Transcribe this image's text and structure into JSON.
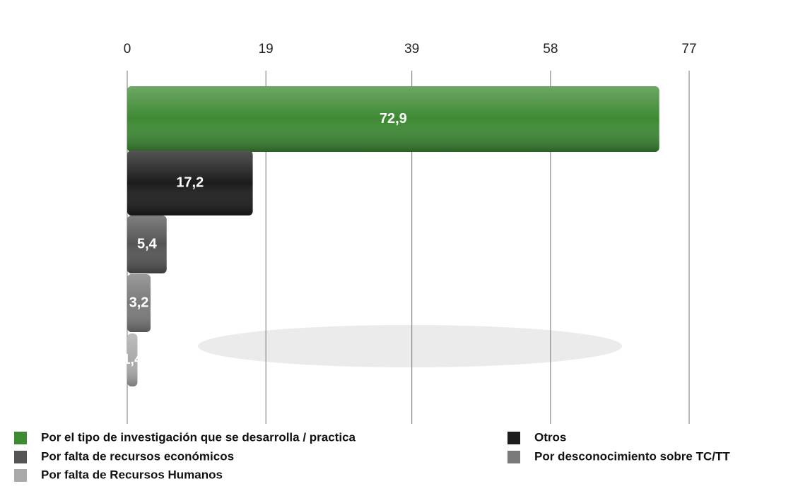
{
  "chart_data": {
    "type": "bar",
    "orientation": "horizontal",
    "categories": [
      "Por el tipo de investigación que se desarrolla / practica",
      "Otros",
      "Por falta de recursos económicos",
      "Por desconocimiento sobre TC/TT",
      "Por falta de Recursos Humanos"
    ],
    "values": [
      72.9,
      17.2,
      5.4,
      3.2,
      1.4
    ],
    "value_labels": [
      "72,9",
      "17,2",
      "5,4",
      "3,2",
      "1,4"
    ],
    "colors": [
      "#3d8a33",
      "#1c1c1c",
      "#555555",
      "#7a7a7a",
      "#aaaaaa"
    ],
    "xlim": [
      0,
      77
    ],
    "xticks": [
      0,
      19,
      39,
      58,
      77
    ],
    "grid": true,
    "legend": "bottom"
  }
}
